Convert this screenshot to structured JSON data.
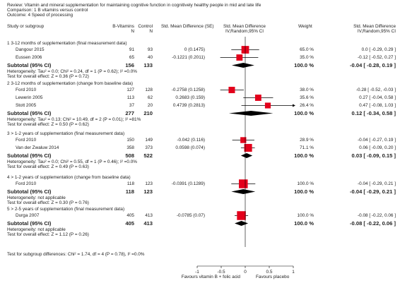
{
  "header": {
    "review": "Review:   Vitamin and mineral supplementation for maintaining cognitive function in cognitively healthy people in mid and late life",
    "comparison": "Comparison:   1 B vitamins versus control",
    "outcome": "Outcome:   4 Speed of processing"
  },
  "columns": {
    "study": "Study or subgroup",
    "b_vit": "B-Vitamins",
    "b_vit_n": "N",
    "control": "Control",
    "control_n": "N",
    "smd_se": "Std. Mean Difference (SE)",
    "plot_head1": "Std. Mean Difference",
    "plot_head2": "IV,Random,95% CI",
    "weight": "Weight",
    "ci_head1": "Std. Mean Difference",
    "ci_head2": "IV,Random,95% CI"
  },
  "chart_data": {
    "type": "forest",
    "x_axis": {
      "ticks": [
        -1,
        -0.5,
        0,
        0.5,
        1
      ],
      "tick_labels": [
        "-1",
        "-0.5",
        "0",
        "0.5",
        "1"
      ],
      "xlim": [
        -1,
        1
      ]
    },
    "favours_left": "Favours vitamin B + folic acid",
    "favours_right": "Favours placebo",
    "subgroups": [
      {
        "title": "1 3-12 months of supplementation (final measurement data)",
        "studies": [
          {
            "name": "Dangour 2015",
            "n1": "91",
            "n2": "93",
            "smd_se": "0 (0.1475)",
            "est": 0,
            "lo": -0.29,
            "hi": 0.29,
            "weight": "65.0 %",
            "ci": "0.0 [ -0.29, 0.29 ]"
          },
          {
            "name": "Eussen 2006",
            "n1": "65",
            "n2": "40",
            "smd_se": "-0.1221 (0.2011)",
            "est": -0.12,
            "lo": -0.52,
            "hi": 0.27,
            "weight": "35.0 %",
            "ci": "-0.12 [ -0.52, 0.27 ]"
          }
        ],
        "subtotal": {
          "label": "Subtotal (95% CI)",
          "n1": "156",
          "n2": "133",
          "est": -0.04,
          "lo": -0.28,
          "hi": 0.19,
          "weight": "100.0 %",
          "ci": "-0.04 [ -0.28, 0.19 ]"
        },
        "heterogeneity": "Heterogeneity: Tau² = 0.0; Chi² = 0.24, df = 1 (P = 0.62); I² =0.0%",
        "overall": "Test for overall effect: Z = 0.36 (P = 0.72)"
      },
      {
        "title": "2 3-12 months of supplementation (change from baseline data)",
        "studies": [
          {
            "name": "Ford 2010",
            "n1": "127",
            "n2": "128",
            "smd_se": "-0.2758 (0.1258)",
            "est": -0.28,
            "lo": -0.52,
            "hi": -0.03,
            "weight": "38.0 %",
            "ci": "-0.28 [ -0.52, -0.03 ]"
          },
          {
            "name": "Lewerin 2005",
            "n1": "113",
            "n2": "62",
            "smd_se": "0.2683 (0.159)",
            "est": 0.27,
            "lo": -0.04,
            "hi": 0.58,
            "weight": "35.6 %",
            "ci": "0.27 [ -0.04, 0.58 ]"
          },
          {
            "name": "Stott 2005",
            "n1": "37",
            "n2": "20",
            "smd_se": "0.4739 (0.2813)",
            "est": 0.47,
            "lo": -0.08,
            "hi": 1.03,
            "weight": "26.4 %",
            "ci": "0.47 [ -0.08, 1.03 ]"
          }
        ],
        "subtotal": {
          "label": "Subtotal (95% CI)",
          "n1": "277",
          "n2": "210",
          "est": 0.12,
          "lo": -0.34,
          "hi": 0.58,
          "weight": "100.0 %",
          "ci": "0.12 [ -0.34, 0.58 ]"
        },
        "heterogeneity": "Heterogeneity: Tau² = 0.13; Chi² = 10.49, df = 2 (P = 0.01); I² =81%",
        "overall": "Test for overall effect: Z = 0.50 (P = 0.62)"
      },
      {
        "title": "3 > 1-2 years of supplementation (final measurement data)",
        "studies": [
          {
            "name": "Ford 2010",
            "n1": "150",
            "n2": "149",
            "smd_se": "-0.042 (0.116)",
            "est": -0.04,
            "lo": -0.27,
            "hi": 0.19,
            "weight": "28.9 %",
            "ci": "-0.04 [ -0.27, 0.19 ]"
          },
          {
            "name": "Van der Zwaluw 2014",
            "n1": "358",
            "n2": "373",
            "smd_se": "0.0598 (0.074)",
            "est": 0.06,
            "lo": -0.09,
            "hi": 0.2,
            "weight": "71.1 %",
            "ci": "0.06 [ -0.09, 0.20 ]"
          }
        ],
        "subtotal": {
          "label": "Subtotal (95% CI)",
          "n1": "508",
          "n2": "522",
          "est": 0.03,
          "lo": -0.09,
          "hi": 0.15,
          "weight": "100.0 %",
          "ci": "0.03 [ -0.09, 0.15 ]"
        },
        "heterogeneity": "Heterogeneity: Tau² = 0.0; Chi² = 0.55, df = 1 (P = 0.46); I² =0.0%",
        "overall": "Test for overall effect: Z = 0.49 (P = 0.63)"
      },
      {
        "title": "4 > 1-2 years of supplementation (change from baseline data)",
        "studies": [
          {
            "name": "Ford 2010",
            "n1": "118",
            "n2": "123",
            "smd_se": "-0.0391 (0.1289)",
            "est": -0.04,
            "lo": -0.29,
            "hi": 0.21,
            "weight": "100.0 %",
            "ci": "-0.04 [ -0.29, 0.21 ]"
          }
        ],
        "subtotal": {
          "label": "Subtotal (95% CI)",
          "n1": "118",
          "n2": "123",
          "est": -0.04,
          "lo": -0.29,
          "hi": 0.21,
          "weight": "100.0 %",
          "ci": "-0.04 [ -0.29, 0.21 ]"
        },
        "heterogeneity": "Heterogeneity: not applicable",
        "overall": "Test for overall effect: Z = 0.30 (P = 0.76)"
      },
      {
        "title": "5 > 2-5 years of supplementation (final measurement data)",
        "studies": [
          {
            "name": "Durga 2007",
            "n1": "405",
            "n2": "413",
            "smd_se": "-0.0785 (0.07)",
            "est": -0.08,
            "lo": -0.22,
            "hi": 0.06,
            "weight": "100.0 %",
            "ci": "-0.08 [ -0.22, 0.06 ]"
          }
        ],
        "subtotal": {
          "label": "Subtotal (95% CI)",
          "n1": "405",
          "n2": "413",
          "est": -0.08,
          "lo": -0.22,
          "hi": 0.06,
          "weight": "100.0 %",
          "ci": "-0.08 [ -0.22, 0.06 ]"
        },
        "heterogeneity": "Heterogeneity: not applicable",
        "overall": "Test for overall effect: Z = 1.12 (P = 0.26)"
      }
    ],
    "subgroup_difference": "Test for subgroup differences: Chi² = 1.74, df = 4 (P = 0.78), I² =0.0%"
  }
}
